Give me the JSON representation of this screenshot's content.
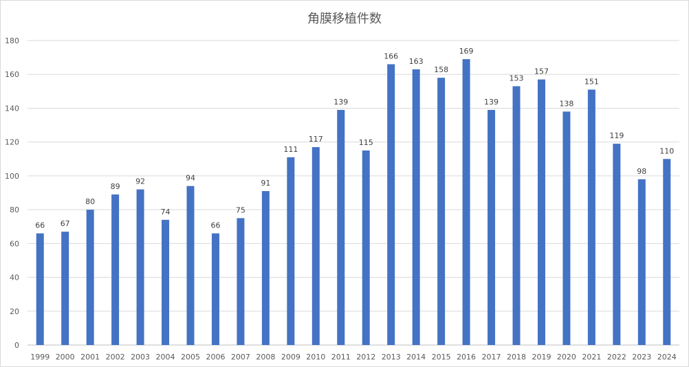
{
  "chart_data": {
    "type": "bar",
    "title": "角膜移植件数",
    "xlabel": "",
    "ylabel": "",
    "ylim": [
      0,
      180
    ],
    "yticks": [
      0,
      20,
      40,
      60,
      80,
      100,
      120,
      140,
      160,
      180
    ],
    "grid": true,
    "legend": "none",
    "bar_color": "#4472C4",
    "categories": [
      "1999",
      "2000",
      "2001",
      "2002",
      "2003",
      "2004",
      "2005",
      "2006",
      "2007",
      "2008",
      "2009",
      "2010",
      "2011",
      "2012",
      "2013",
      "2014",
      "2015",
      "2016",
      "2017",
      "2018",
      "2019",
      "2020",
      "2021",
      "2022",
      "2023",
      "2024"
    ],
    "values": [
      66,
      67,
      80,
      89,
      92,
      74,
      94,
      66,
      75,
      91,
      111,
      117,
      139,
      115,
      166,
      163,
      158,
      169,
      139,
      153,
      157,
      138,
      151,
      119,
      98,
      110
    ]
  }
}
